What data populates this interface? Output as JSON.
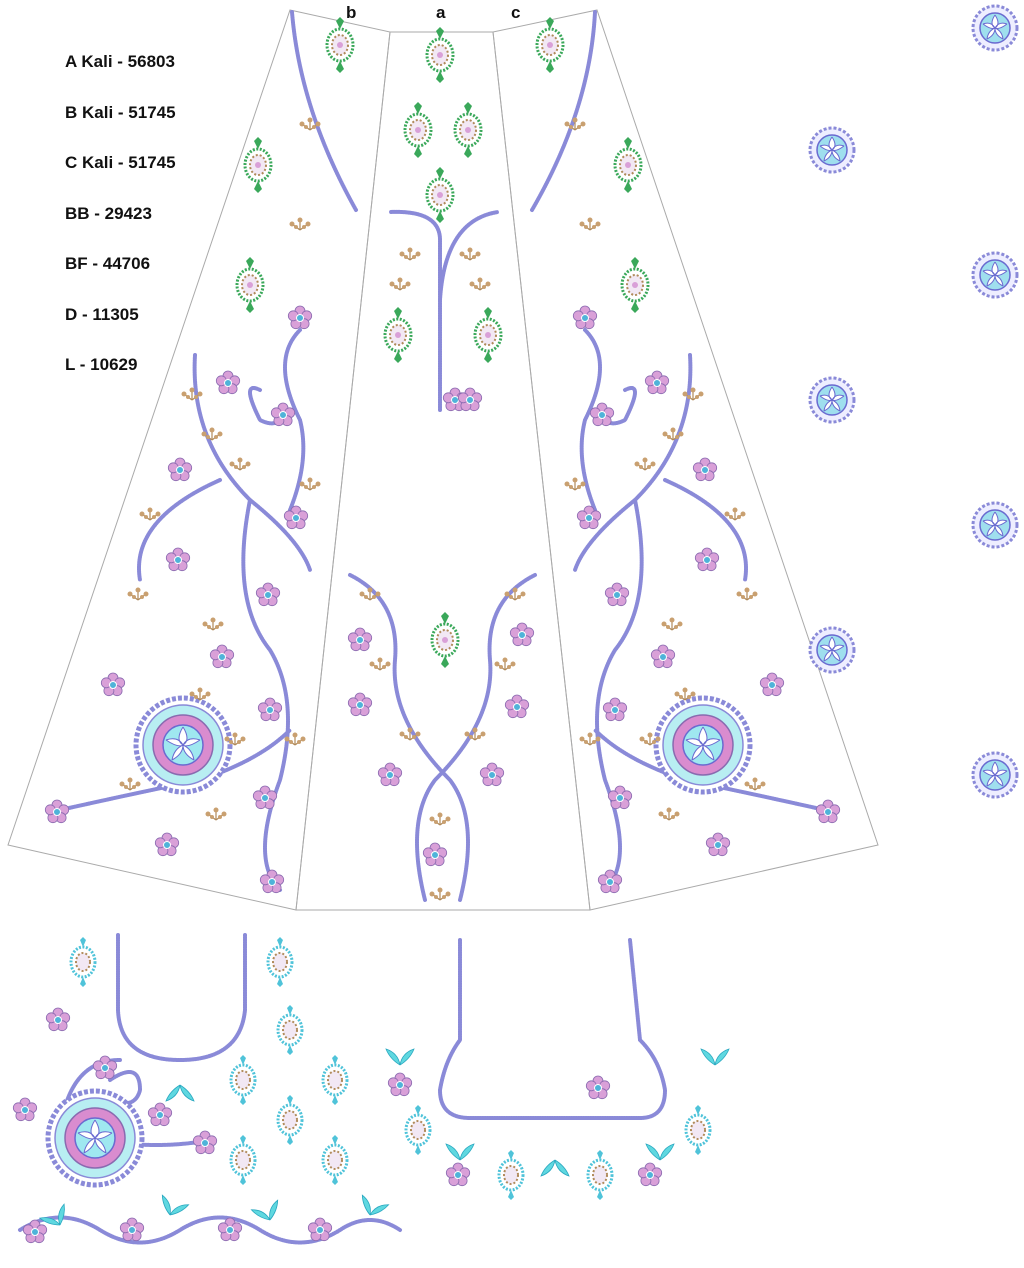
{
  "panel_labels": {
    "b": "b",
    "a": "a",
    "c": "c"
  },
  "stitch_counts": [
    "A Kali - 56803",
    "B Kali - 51745",
    "C Kali - 51745",
    "BB - 29423",
    "BF - 44706",
    "D - 11305",
    "L - 10629"
  ],
  "colors": {
    "vine": "#8a8ad8",
    "flower_pink": "#d9a0d8",
    "flower_center": "#4fb3d9",
    "leaf_green": "#3aa85a",
    "bud_brown": "#b08a5a",
    "aqua": "#7fe3e8",
    "outline": "#999999",
    "yellow": "#e0c020"
  }
}
